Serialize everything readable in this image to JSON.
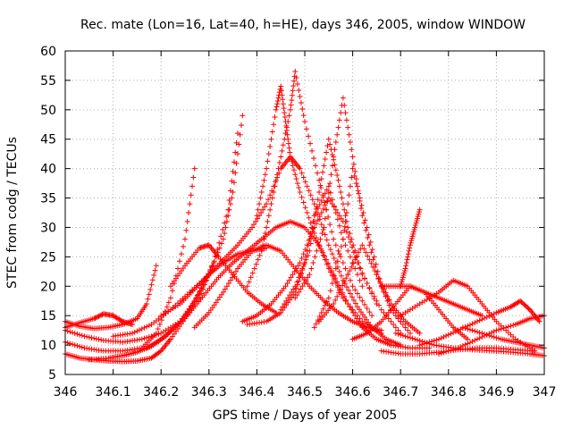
{
  "chart_data": {
    "type": "scatter",
    "title": "Rec. mate (Lon=16, Lat=40, h=HE), days 346, 2005, window WINDOW",
    "xlabel": "GPS time / Days of year 2005",
    "ylabel": "STEC from codg / TECUs",
    "xlim": [
      346,
      347
    ],
    "ylim": [
      5,
      60
    ],
    "xticks": [
      346,
      346.1,
      346.2,
      346.3,
      346.4,
      346.5,
      346.6,
      346.7,
      346.8,
      346.9,
      347
    ],
    "xtick_labels": [
      "346",
      "346.1",
      "346.2",
      "346.3",
      "346.4",
      "346.5",
      "346.6",
      "346.7",
      "346.8",
      "346.9",
      "347"
    ],
    "yticks": [
      5,
      10,
      15,
      20,
      25,
      30,
      35,
      40,
      45,
      50,
      55,
      60
    ],
    "ytick_labels": [
      "5",
      "10",
      "15",
      "20",
      "25",
      "30",
      "35",
      "40",
      "45",
      "50",
      "55",
      "60"
    ],
    "grid": true,
    "marker": "plus",
    "color": "#ff0000",
    "series": [
      {
        "x": [
          346.0,
          346.03,
          346.06,
          346.09,
          346.12,
          346.15,
          346.18,
          346.2,
          346.22,
          346.25,
          346.28,
          346.31
        ],
        "y": [
          8.5,
          7.8,
          7.5,
          7.3,
          7.2,
          7.3,
          7.8,
          9,
          11,
          14.5,
          19,
          24
        ]
      },
      {
        "x": [
          346.0,
          346.04,
          346.08,
          346.12,
          346.16,
          346.19,
          346.22,
          346.25,
          346.27
        ],
        "y": [
          10.5,
          9.5,
          9.0,
          9.0,
          9.5,
          12,
          18,
          28,
          40
        ]
      },
      {
        "x": [
          346.0,
          346.03,
          346.06,
          346.09,
          346.12,
          346.15,
          346.17,
          346.19
        ],
        "y": [
          14,
          13.2,
          12.8,
          13.0,
          13.5,
          14.5,
          17,
          23.5
        ]
      },
      {
        "x": [
          346.0,
          346.04,
          346.08,
          346.12,
          346.16,
          346.2,
          346.24,
          346.28,
          346.31,
          346.34,
          346.36
        ],
        "y": [
          12.5,
          11.5,
          10.8,
          10.5,
          11,
          12,
          14,
          18,
          24,
          33,
          46
        ]
      },
      {
        "x": [
          346.05,
          346.09,
          346.12,
          346.15,
          346.18,
          346.21,
          346.24,
          346.27,
          346.3,
          346.33,
          346.35,
          346.37
        ],
        "y": [
          7.5,
          7.8,
          8.2,
          8.8,
          9.8,
          11.5,
          14,
          17.5,
          22,
          28,
          36,
          49
        ]
      },
      {
        "x": [
          346.0,
          346.03,
          346.06,
          346.08,
          346.1,
          346.12,
          346.14
        ],
        "y": [
          13,
          13.8,
          14.5,
          15.3,
          15.0,
          14.0,
          13.5
        ]
      },
      {
        "x": [
          346.1,
          346.14,
          346.18,
          346.22,
          346.26,
          346.3,
          346.33,
          346.36,
          346.39,
          346.42
        ],
        "y": [
          11.5,
          12,
          13.5,
          16,
          19,
          22,
          24,
          25.5,
          26,
          26.5
        ]
      },
      {
        "x": [
          346.17,
          346.2,
          346.23,
          346.26,
          346.29,
          346.32,
          346.35,
          346.38,
          346.41,
          346.44,
          346.47,
          346.5,
          346.53,
          346.56,
          346.59,
          346.62,
          346.65,
          346.68,
          346.72,
          346.76
        ],
        "y": [
          9.5,
          11,
          13,
          15.5,
          18.5,
          21.5,
          24,
          26,
          28,
          30,
          31,
          30,
          27,
          22,
          17,
          13,
          11,
          10,
          9.5,
          9.5
        ]
      },
      {
        "x": [
          346.2,
          346.24,
          346.27,
          346.3,
          346.33,
          346.36,
          346.39,
          346.42,
          346.45,
          346.47,
          346.49,
          346.52,
          346.55,
          346.58,
          346.61,
          346.64,
          346.67,
          346.7
        ],
        "y": [
          15,
          17,
          19.5,
          22,
          24.5,
          27,
          30,
          34,
          40,
          42,
          40,
          34,
          27,
          21,
          16.5,
          13,
          11,
          10
        ]
      },
      {
        "x": [
          346.22,
          346.25,
          346.28,
          346.3,
          346.32,
          346.35,
          346.38,
          346.41,
          346.44
        ],
        "y": [
          20,
          23.5,
          26.5,
          27,
          25,
          22,
          19,
          17,
          15.5
        ]
      },
      {
        "x": [
          346.27,
          346.3,
          346.33,
          346.36,
          346.39,
          346.42,
          346.45,
          346.48,
          346.51,
          346.54,
          346.57,
          346.6,
          346.63,
          346.66
        ],
        "y": [
          13,
          15.5,
          19,
          23,
          26,
          27,
          26,
          23,
          20,
          17.5,
          15.5,
          14,
          13,
          12.5
        ]
      },
      {
        "x": [
          346.4,
          346.42,
          346.44,
          346.45,
          346.46,
          346.47,
          346.49,
          346.52,
          346.55,
          346.58,
          346.62,
          346.66
        ],
        "y": [
          32,
          40,
          50,
          54,
          48,
          42,
          36,
          29,
          23,
          18,
          14,
          12
        ]
      },
      {
        "x": [
          346.38,
          346.41,
          346.43,
          346.45,
          346.47,
          346.48,
          346.5,
          346.53,
          346.56,
          346.6,
          346.64
        ],
        "y": [
          20,
          26,
          34,
          42,
          50,
          56.5,
          48,
          38,
          28,
          20,
          15
        ]
      },
      {
        "x": [
          346.37,
          346.4,
          346.43,
          346.46,
          346.49,
          346.52,
          346.55,
          346.58,
          346.61,
          346.65
        ],
        "y": [
          14,
          15,
          17,
          20,
          24,
          30,
          35,
          31,
          24,
          17
        ]
      },
      {
        "x": [
          346.38,
          346.42,
          346.45,
          346.48,
          346.5,
          346.52,
          346.55,
          346.58,
          346.62
        ],
        "y": [
          13.5,
          14,
          15.5,
          19,
          24,
          32,
          37,
          28,
          20
        ]
      },
      {
        "x": [
          346.48,
          346.51,
          346.54,
          346.56,
          346.58,
          346.6,
          346.62,
          346.65,
          346.68,
          346.72
        ],
        "y": [
          18,
          22,
          30,
          42,
          52,
          42,
          32,
          22,
          16,
          12
        ]
      },
      {
        "x": [
          346.45,
          346.48,
          346.51,
          346.53,
          346.55,
          346.57,
          346.59,
          346.62,
          346.66,
          346.7
        ],
        "y": [
          16,
          20,
          26,
          36,
          45,
          38,
          30,
          22,
          16,
          12
        ]
      },
      {
        "x": [
          346.53,
          346.56,
          346.59,
          346.62,
          346.65,
          346.68,
          346.71,
          346.74
        ],
        "y": [
          14,
          17,
          22,
          27,
          22,
          17,
          14,
          12
        ]
      },
      {
        "x": [
          346.52,
          346.55,
          346.58,
          346.6,
          346.63,
          346.66,
          346.7
        ],
        "y": [
          13,
          18,
          28,
          40,
          30,
          20,
          14
        ]
      },
      {
        "x": [
          346.6,
          346.63,
          346.66,
          346.69,
          346.72,
          346.75,
          346.78,
          346.81,
          346.84
        ],
        "y": [
          11,
          12,
          14,
          17,
          20,
          19,
          16,
          13,
          11
        ]
      },
      {
        "x": [
          346.7,
          346.71,
          346.72,
          346.73,
          346.74
        ],
        "y": [
          20,
          23,
          27,
          30,
          33
        ]
      },
      {
        "x": [
          346.66,
          346.69,
          346.72,
          346.75,
          346.78,
          346.81,
          346.84,
          346.87
        ],
        "y": [
          20,
          20,
          20,
          19,
          18,
          17,
          16,
          15
        ]
      },
      {
        "x": [
          346.69,
          346.73,
          346.77,
          346.81,
          346.85,
          346.89,
          346.93,
          346.97,
          347.0
        ],
        "y": [
          12,
          11,
          10,
          9.5,
          9.2,
          9.0,
          8.8,
          8.5,
          8.2
        ]
      },
      {
        "x": [
          346.66,
          346.7,
          346.74,
          346.78,
          346.82,
          346.86,
          346.9,
          346.94,
          346.98
        ],
        "y": [
          9,
          8.5,
          8.5,
          8.8,
          9.2,
          9.5,
          9.5,
          9.2,
          9.0
        ]
      },
      {
        "x": [
          346.7,
          346.74,
          346.78,
          346.81,
          346.84,
          346.87,
          346.9,
          346.94,
          346.98
        ],
        "y": [
          15,
          17,
          19,
          21,
          20,
          17,
          14,
          11,
          9
        ]
      },
      {
        "x": [
          346.74,
          346.78,
          346.82,
          346.86,
          346.9,
          346.93,
          346.95,
          346.97,
          346.99
        ],
        "y": [
          10,
          11,
          12.5,
          14,
          15.5,
          16.5,
          17.5,
          16,
          14
        ]
      },
      {
        "x": [
          346.78,
          346.82,
          346.86,
          346.9,
          346.94,
          346.97,
          347.0
        ],
        "y": [
          8.5,
          9.5,
          11,
          12.5,
          13.5,
          14.5,
          15
        ]
      },
      {
        "x": [
          346.83,
          346.87,
          346.91,
          346.94,
          346.97,
          347.0
        ],
        "y": [
          13,
          12,
          11,
          10.5,
          10,
          9.5
        ]
      }
    ]
  }
}
